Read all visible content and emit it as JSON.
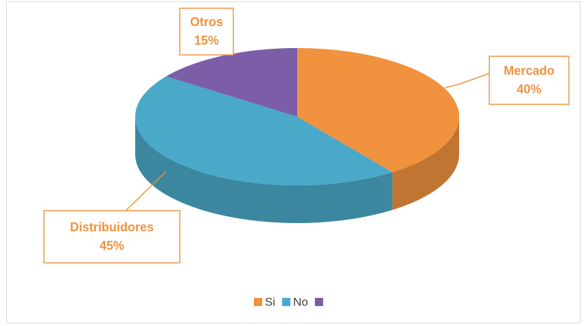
{
  "chart_data": {
    "type": "pie",
    "pie_3d": true,
    "categories": [
      "Mercado",
      "Distribuidores",
      "Otros"
    ],
    "values": [
      40,
      45,
      15
    ],
    "value_labels": [
      "40%",
      "45%",
      "15%"
    ],
    "colors": [
      "#f0923e",
      "#4aa9c8",
      "#7b5ea7"
    ],
    "legend": [
      "Si",
      "No",
      null
    ],
    "legend_position": "bottom"
  }
}
